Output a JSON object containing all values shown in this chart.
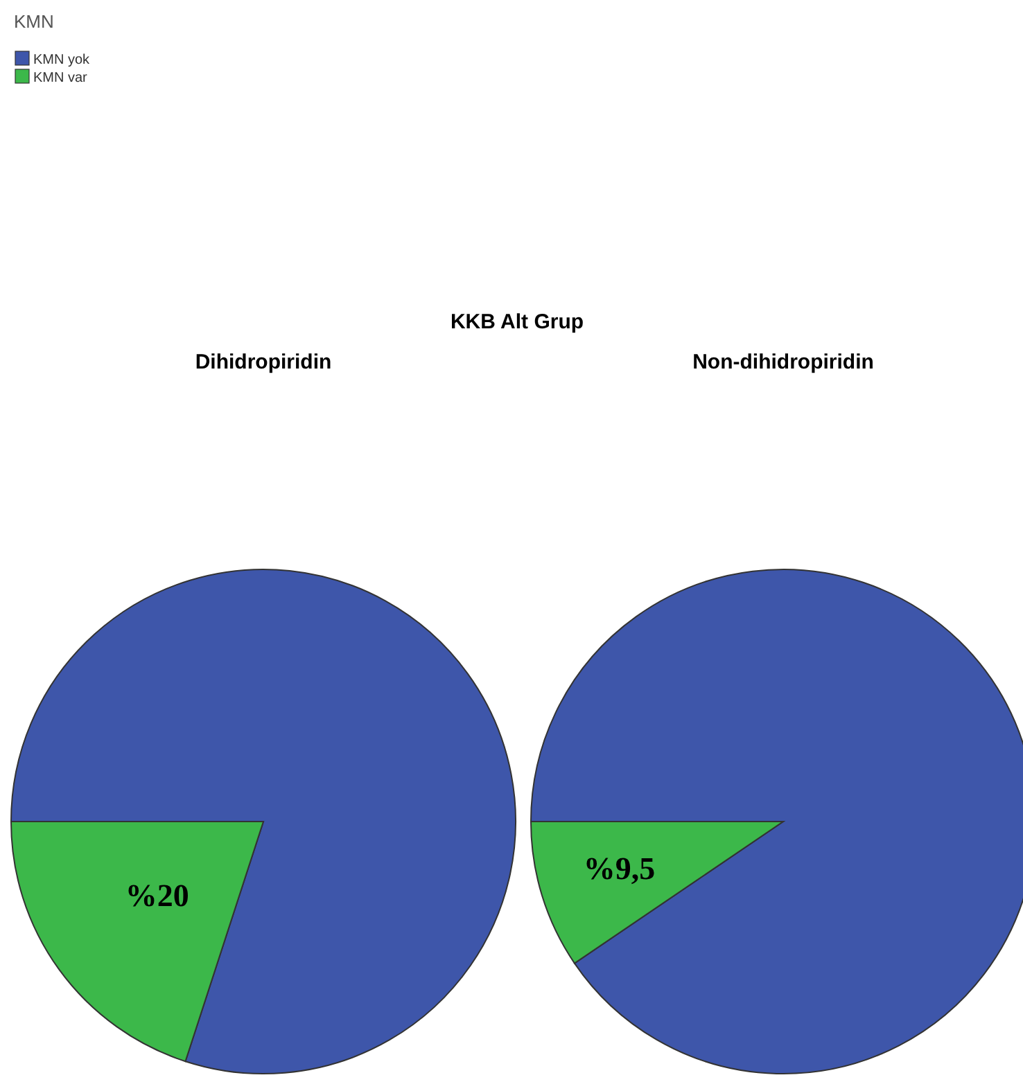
{
  "chart_data": {
    "type": "pie",
    "title": "KKB Alt Grup",
    "legend_title": "KMN",
    "legend": "top left",
    "categories": [
      "KMN yok",
      "KMN var"
    ],
    "colors": [
      "#3e56aa",
      "#3cb84a"
    ],
    "series": [
      {
        "name": "Dihidropiridin",
        "values": [
          80,
          20
        ],
        "value_labels": [
          null,
          "%20"
        ]
      },
      {
        "name": "Non-dihidropiridin",
        "values": [
          90.5,
          9.5
        ],
        "value_labels": [
          null,
          "%9,5"
        ]
      }
    ]
  }
}
